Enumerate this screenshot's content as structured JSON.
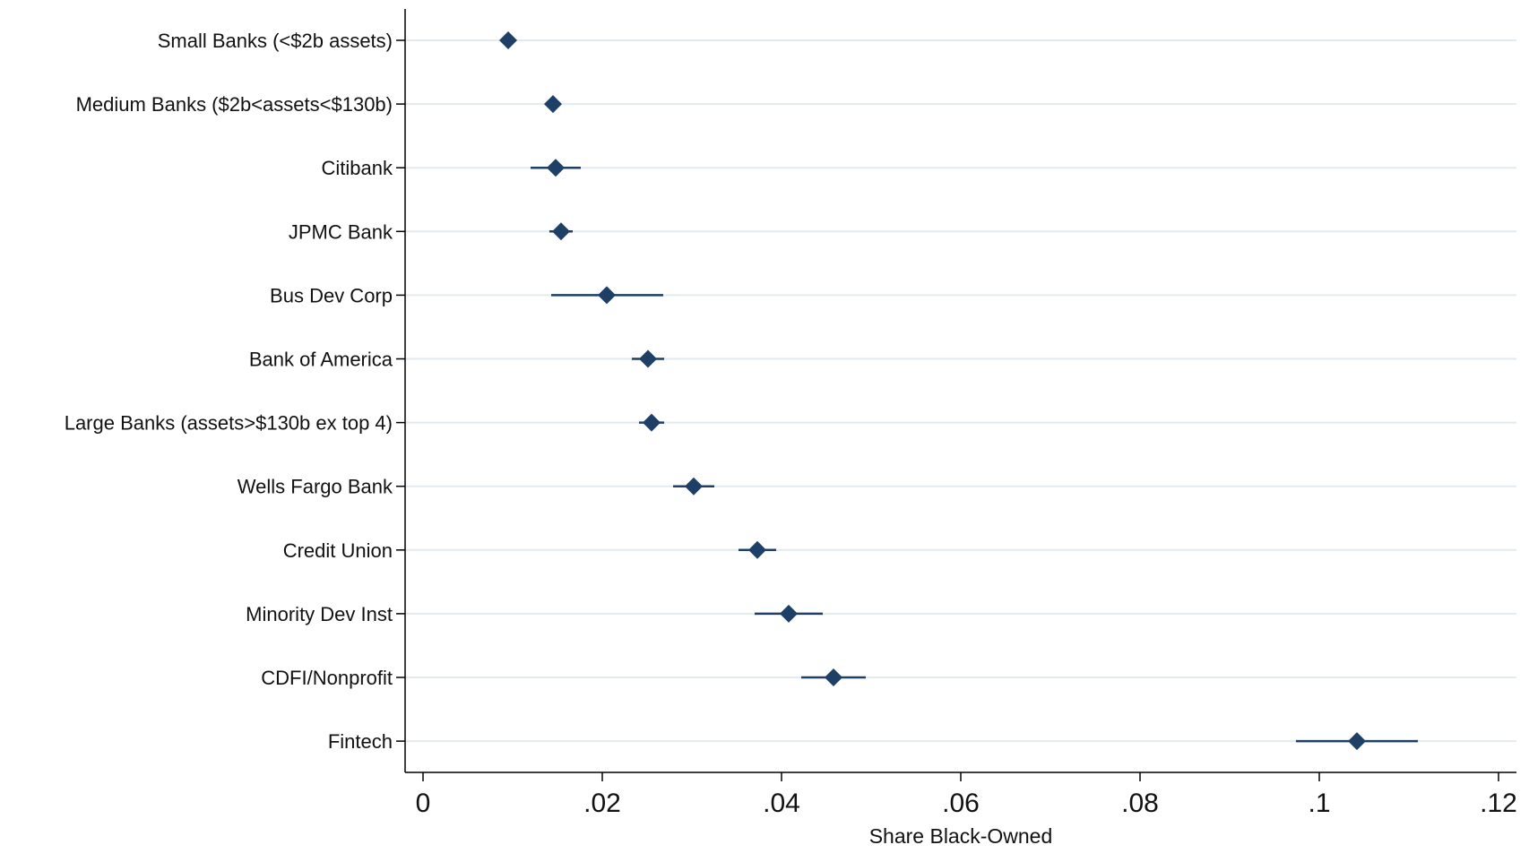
{
  "chart_data": {
    "type": "scatter",
    "subtype": "coefficient-plot-with-confidence-intervals",
    "orientation": "horizontal",
    "categories": [
      "Small Banks (<$2b assets)",
      "Medium Banks ($2b<assets<$130b)",
      "Citibank",
      "JPMC Bank",
      "Bus Dev Corp",
      "Bank of America",
      "Large Banks (assets>$130b ex top 4)",
      "Wells Fargo Bank",
      "Credit Union",
      "Minority Dev Inst",
      "CDFI/Nonprofit",
      "Fintech"
    ],
    "values": [
      0.0095,
      0.0145,
      0.0148,
      0.0154,
      0.0205,
      0.0251,
      0.0255,
      0.0302,
      0.0373,
      0.0408,
      0.0458,
      0.1042
    ],
    "ci_low": [
      0.0092,
      0.0138,
      0.012,
      0.0141,
      0.0143,
      0.0233,
      0.0241,
      0.0279,
      0.0352,
      0.037,
      0.0422,
      0.0974
    ],
    "ci_high": [
      0.0098,
      0.0152,
      0.0176,
      0.0167,
      0.0268,
      0.0269,
      0.0269,
      0.0325,
      0.0394,
      0.0446,
      0.0494,
      0.111
    ],
    "xlim": [
      -0.002,
      0.122
    ],
    "xticks": [
      0,
      0.02,
      0.04,
      0.06,
      0.08,
      0.1,
      0.12
    ],
    "xtick_labels": [
      "0",
      ".02",
      ".04",
      ".06",
      ".08",
      ".1",
      ".12"
    ],
    "xlabel": "Share Black-Owned",
    "ylabel": "",
    "title": "",
    "grid": "horizontal",
    "legend": "none",
    "colors": {
      "marker": "#1e3f66",
      "ci_line": "#1e3f66",
      "grid": "#e3eaef",
      "axis": "#000000"
    }
  }
}
